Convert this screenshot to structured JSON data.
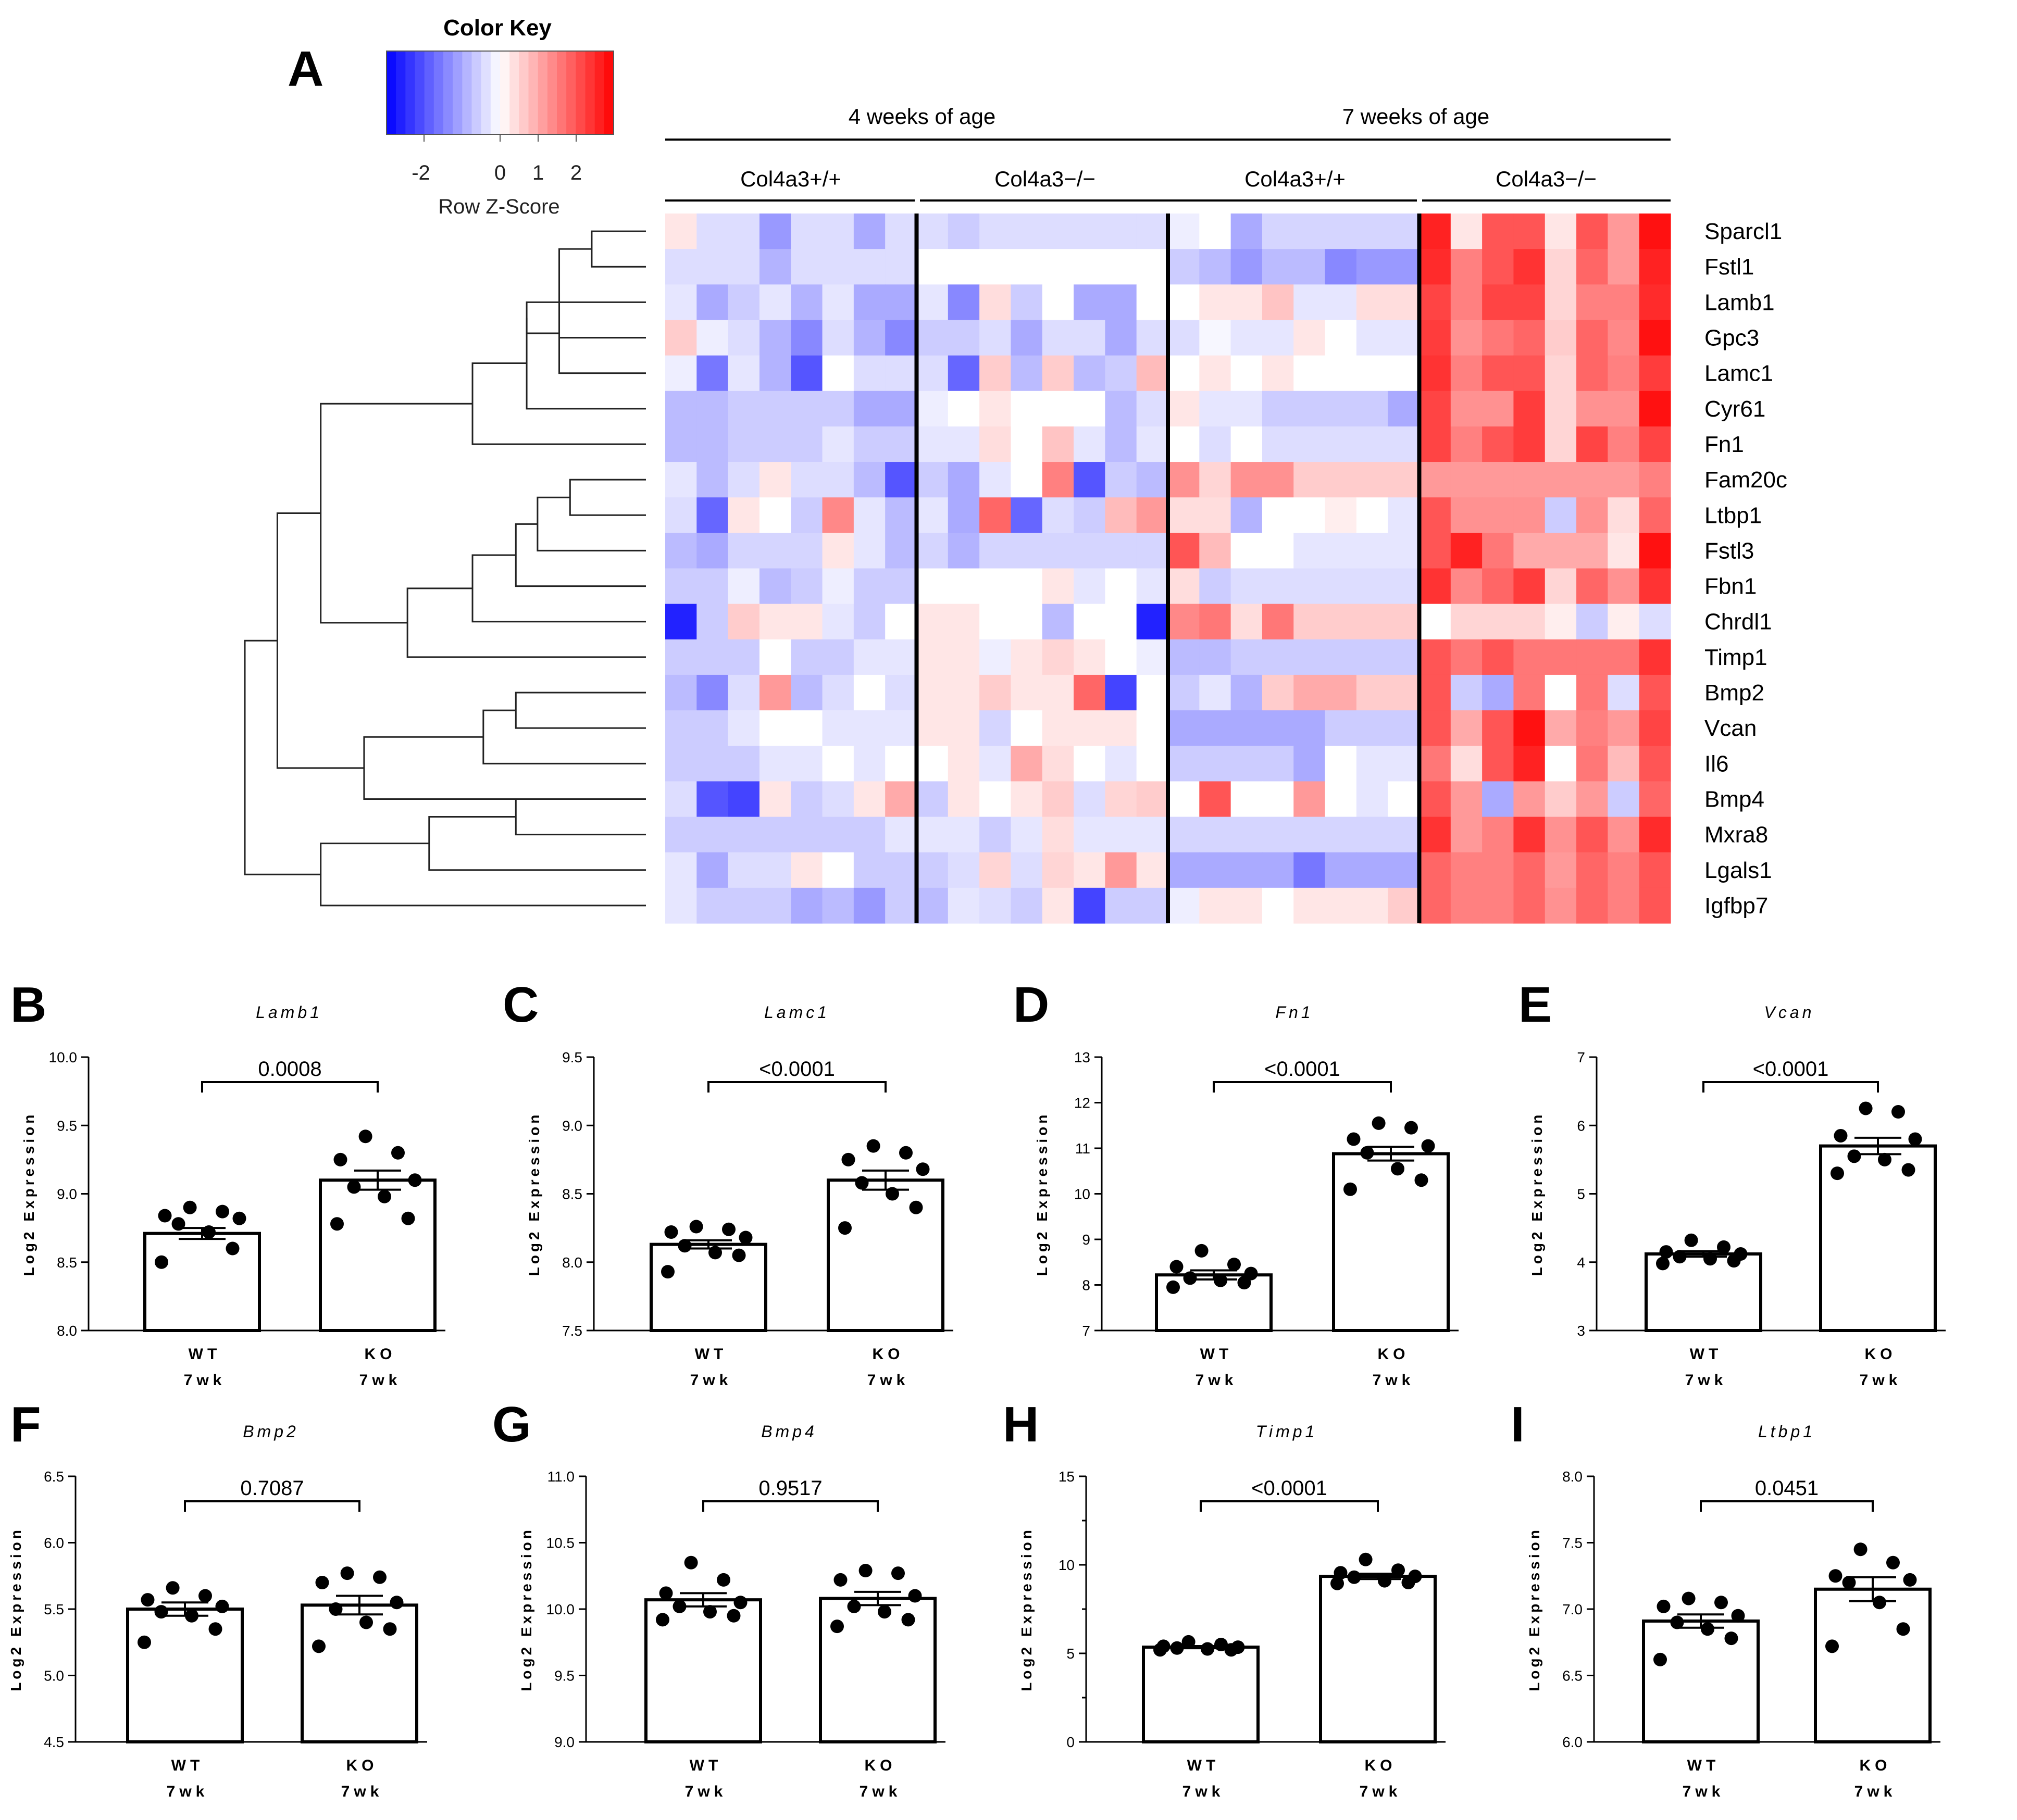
{
  "panel_a": {
    "letter": "A",
    "color_key": {
      "title": "Color Key",
      "ticks": [
        "-2",
        "0",
        "1",
        "2"
      ],
      "label": "Row Z-Score",
      "colors": [
        "#0000ff",
        "#ffffff",
        "#ff0000"
      ]
    },
    "age_groups": [
      "4 weeks of age",
      "7 weeks of age"
    ],
    "genotypes": [
      "Col4a3+/+",
      "Col4a3−/−",
      "Col4a3+/+",
      "Col4a3−/−"
    ]
  },
  "chart_data": [
    {
      "type": "heatmap",
      "title": "",
      "rows": [
        "Sparcl1",
        "Fstl1",
        "Lamb1",
        "Gpc3",
        "Lamc1",
        "Cyr61",
        "Fn1",
        "Fam20c",
        "Ltbp1",
        "Fstl3",
        "Fbn1",
        "Chrdl1",
        "Timp1",
        "Bmp2",
        "Vcan",
        "Il6",
        "Bmp4",
        "Mxra8",
        "Lgals1",
        "Igfbp7"
      ],
      "columns_per_group": 8,
      "groups": [
        "4 wk Col4a3+/+",
        "4 wk Col4a3−/−",
        "7 wk Col4a3+/+",
        "7 wk Col4a3−/−"
      ],
      "color_scale": {
        "min": -3,
        "max": 3,
        "low": "#0000ff",
        "mid": "#ffffff",
        "high": "#ff0000"
      },
      "values": [
        [
          0.3,
          -0.4,
          -0.4,
          -1.2,
          -0.4,
          -0.4,
          -1.0,
          -0.4,
          -0.4,
          -0.6,
          -0.4,
          -0.4,
          -0.4,
          -0.4,
          -0.4,
          -0.4,
          -0.2,
          0.0,
          -1.0,
          -0.5,
          -0.5,
          -0.5,
          -0.5,
          -0.5,
          2.6,
          0.3,
          2.0,
          2.0,
          0.3,
          2.0,
          1.2,
          2.8
        ],
        [
          -0.4,
          -0.4,
          -0.4,
          -0.9,
          -0.4,
          -0.4,
          -0.4,
          -0.4,
          0.0,
          0.0,
          0.0,
          0.0,
          0.0,
          0.0,
          0.0,
          0.0,
          -0.6,
          -0.8,
          -1.2,
          -0.8,
          -0.8,
          -1.4,
          -1.2,
          -1.2,
          2.5,
          1.5,
          2.0,
          2.4,
          0.5,
          1.8,
          1.2,
          2.6
        ],
        [
          -0.3,
          -1.0,
          -0.6,
          -0.3,
          -0.9,
          -0.3,
          -1.0,
          -1.0,
          -0.3,
          -1.4,
          0.4,
          -0.6,
          0.0,
          -1.0,
          -1.0,
          0.0,
          0.0,
          0.3,
          0.3,
          0.7,
          -0.3,
          -0.3,
          0.4,
          0.4,
          2.2,
          1.5,
          2.2,
          2.2,
          0.5,
          1.5,
          1.5,
          2.5
        ],
        [
          0.6,
          -0.2,
          -0.4,
          -0.9,
          -1.4,
          -0.4,
          -0.9,
          -1.4,
          -0.6,
          -0.6,
          -0.4,
          -1.0,
          -0.4,
          -0.4,
          -1.0,
          -0.4,
          -0.4,
          -0.1,
          -0.3,
          -0.3,
          0.3,
          0.0,
          -0.3,
          -0.3,
          2.3,
          1.3,
          1.6,
          1.8,
          0.6,
          1.8,
          1.4,
          2.8
        ],
        [
          -0.2,
          -1.6,
          -0.3,
          -0.9,
          -2.0,
          0.0,
          -0.4,
          -0.4,
          -0.4,
          -1.8,
          0.6,
          -0.8,
          0.6,
          -0.8,
          -0.6,
          0.8,
          0.0,
          0.3,
          0.0,
          0.3,
          0.0,
          0.0,
          0.0,
          0.0,
          2.4,
          1.5,
          2.0,
          2.0,
          0.5,
          1.8,
          1.5,
          2.3
        ],
        [
          -0.8,
          -0.8,
          -0.6,
          -0.6,
          -0.6,
          -0.6,
          -1.0,
          -1.0,
          -0.2,
          0.0,
          0.3,
          0.0,
          0.0,
          0.0,
          -0.8,
          -0.4,
          0.3,
          -0.3,
          -0.3,
          -0.6,
          -0.6,
          -0.6,
          -0.6,
          -1.0,
          2.2,
          1.3,
          1.3,
          2.3,
          0.5,
          1.3,
          1.3,
          2.8
        ],
        [
          -0.8,
          -0.8,
          -0.6,
          -0.6,
          -0.6,
          -0.3,
          -0.6,
          -0.6,
          -0.3,
          -0.3,
          0.4,
          0.0,
          0.7,
          -0.3,
          -0.8,
          -0.3,
          0.0,
          -0.4,
          0.0,
          -0.4,
          -0.4,
          -0.4,
          -0.4,
          -0.4,
          2.2,
          1.5,
          2.0,
          2.3,
          0.5,
          2.2,
          1.5,
          2.2
        ],
        [
          -0.3,
          -0.8,
          -0.4,
          0.3,
          -0.4,
          -0.4,
          -0.8,
          -2.0,
          -0.6,
          -1.0,
          -0.3,
          0.0,
          1.5,
          -2.0,
          -0.6,
          -0.8,
          1.3,
          0.5,
          1.3,
          1.3,
          0.6,
          0.6,
          0.6,
          0.6,
          1.2,
          1.2,
          1.2,
          1.2,
          1.2,
          1.2,
          1.2,
          1.5
        ],
        [
          -0.4,
          -1.8,
          0.3,
          0.0,
          -0.6,
          1.4,
          -0.3,
          -0.8,
          -0.3,
          -1.0,
          1.8,
          -1.8,
          -0.4,
          -0.6,
          0.8,
          1.2,
          0.4,
          0.4,
          -0.9,
          0.0,
          0.0,
          0.2,
          0.0,
          -0.3,
          2.0,
          1.3,
          1.3,
          1.3,
          -0.6,
          1.3,
          0.4,
          1.8
        ],
        [
          -0.8,
          -1.0,
          -0.5,
          -0.5,
          -0.5,
          0.3,
          -0.3,
          -0.8,
          -0.5,
          -0.9,
          -0.5,
          -0.5,
          -0.5,
          -0.5,
          -0.5,
          -0.5,
          2.0,
          0.8,
          0.0,
          0.0,
          -0.3,
          -0.3,
          -0.3,
          -0.3,
          2.0,
          2.6,
          1.6,
          1.0,
          1.0,
          1.0,
          0.3,
          2.8
        ],
        [
          -0.6,
          -0.6,
          -0.2,
          -0.8,
          -0.6,
          -0.2,
          -0.6,
          -0.6,
          0.0,
          0.0,
          0.0,
          0.0,
          0.3,
          -0.3,
          0.0,
          -0.3,
          0.4,
          -0.6,
          -0.4,
          -0.4,
          -0.4,
          -0.4,
          -0.4,
          -0.4,
          2.4,
          1.4,
          1.8,
          2.3,
          0.5,
          1.8,
          1.3,
          2.4
        ],
        [
          -2.6,
          -0.6,
          0.6,
          0.3,
          0.3,
          -0.3,
          -0.6,
          0.0,
          0.3,
          0.3,
          0.0,
          0.0,
          -0.8,
          0.0,
          0.0,
          -2.6,
          1.4,
          1.6,
          0.4,
          1.6,
          0.6,
          0.6,
          0.6,
          0.6,
          0.0,
          0.5,
          0.5,
          0.5,
          0.2,
          -0.6,
          0.2,
          -0.4
        ],
        [
          -0.6,
          -0.6,
          -0.6,
          0.0,
          -0.6,
          -0.6,
          -0.3,
          -0.3,
          0.3,
          0.3,
          -0.2,
          0.3,
          0.5,
          0.3,
          0.0,
          -0.2,
          -0.8,
          -0.8,
          -0.6,
          -0.6,
          -0.6,
          -0.6,
          -0.6,
          -0.6,
          2.0,
          1.6,
          2.0,
          1.6,
          1.6,
          1.6,
          1.6,
          2.4
        ],
        [
          -0.8,
          -1.4,
          -0.4,
          1.2,
          -0.8,
          -0.4,
          0.0,
          -0.4,
          0.3,
          0.3,
          0.6,
          0.3,
          0.3,
          1.8,
          -2.2,
          0.0,
          -0.6,
          -0.3,
          -0.9,
          0.6,
          1.0,
          1.0,
          0.6,
          0.6,
          2.0,
          -0.6,
          -1.0,
          1.6,
          0.0,
          1.6,
          -0.4,
          2.0
        ],
        [
          -0.6,
          -0.6,
          -0.3,
          0.0,
          0.0,
          -0.3,
          -0.3,
          -0.3,
          0.3,
          0.3,
          -0.5,
          0.0,
          0.3,
          0.3,
          0.3,
          0.0,
          -1.0,
          -1.0,
          -1.0,
          -1.0,
          -1.0,
          -0.6,
          -0.6,
          -0.6,
          2.0,
          1.0,
          2.0,
          2.8,
          1.0,
          1.5,
          1.2,
          2.2
        ],
        [
          -0.6,
          -0.6,
          -0.6,
          -0.3,
          -0.3,
          0.0,
          -0.3,
          0.0,
          0.0,
          0.3,
          -0.3,
          1.0,
          0.4,
          0.0,
          -0.3,
          0.0,
          -0.6,
          -0.6,
          -0.6,
          -0.6,
          -1.0,
          0.0,
          -0.3,
          -0.3,
          1.6,
          0.4,
          2.0,
          2.6,
          0.0,
          1.6,
          0.8,
          2.0
        ],
        [
          -0.4,
          -2.0,
          -2.2,
          0.3,
          -0.6,
          -0.4,
          0.3,
          1.0,
          -0.6,
          0.3,
          0.0,
          0.3,
          0.6,
          -0.4,
          0.5,
          0.6,
          0.0,
          2.0,
          0.0,
          0.0,
          1.2,
          0.0,
          -0.3,
          0.0,
          2.0,
          1.2,
          -1.0,
          1.2,
          0.6,
          1.2,
          -0.6,
          1.8
        ],
        [
          -0.6,
          -0.6,
          -0.6,
          -0.6,
          -0.6,
          -0.6,
          -0.6,
          -0.3,
          -0.3,
          -0.3,
          -0.6,
          -0.3,
          0.4,
          -0.3,
          -0.3,
          -0.3,
          -0.5,
          -0.5,
          -0.5,
          -0.5,
          -0.5,
          -0.5,
          -0.5,
          -0.5,
          2.4,
          1.2,
          1.5,
          2.4,
          1.3,
          2.0,
          1.3,
          2.5
        ],
        [
          -0.3,
          -1.0,
          -0.4,
          -0.4,
          0.3,
          0.0,
          -0.6,
          -0.6,
          -0.6,
          -0.4,
          0.5,
          -0.4,
          0.5,
          0.3,
          1.2,
          0.3,
          -1.0,
          -1.0,
          -1.0,
          -1.0,
          -1.6,
          -1.0,
          -1.0,
          -1.0,
          1.8,
          1.5,
          1.5,
          1.8,
          1.2,
          1.8,
          1.5,
          2.0
        ],
        [
          -0.3,
          -0.6,
          -0.6,
          -0.6,
          -1.0,
          -0.8,
          -1.2,
          -0.6,
          -0.8,
          -0.3,
          -0.4,
          -0.6,
          0.3,
          -2.2,
          -0.6,
          -0.6,
          -0.2,
          0.3,
          0.3,
          0.0,
          0.3,
          0.3,
          0.3,
          0.6,
          1.8,
          1.5,
          1.5,
          1.8,
          1.3,
          1.8,
          1.5,
          2.0
        ]
      ],
      "dendrogram_merges": [
        [
          0,
          1,
          0.5
        ],
        [
          20,
          3,
          0.8
        ],
        [
          21,
          4,
          0.8
        ],
        [
          22,
          2,
          1.1
        ],
        [
          23,
          5,
          1.1
        ],
        [
          24,
          6,
          1.6
        ],
        [
          7,
          8,
          0.7
        ],
        [
          26,
          9,
          1.0
        ],
        [
          27,
          10,
          1.2
        ],
        [
          28,
          11,
          1.6
        ],
        [
          29,
          12,
          2.2
        ],
        [
          25,
          30,
          3.0
        ],
        [
          13,
          14,
          1.2
        ],
        [
          32,
          15,
          1.5
        ],
        [
          33,
          16,
          2.6
        ],
        [
          16,
          17,
          1.2
        ],
        [
          35,
          18,
          2.0
        ],
        [
          36,
          19,
          3.0
        ],
        [
          31,
          34,
          3.4
        ],
        [
          38,
          37,
          3.7
        ]
      ]
    },
    {
      "type": "bar",
      "panel": "B",
      "title": "Lamb1",
      "categories": [
        "WT",
        "KO"
      ],
      "sublabels": [
        "7wk",
        "7wk"
      ],
      "values": [
        8.71,
        9.1
      ],
      "sem": [
        0.04,
        0.07
      ],
      "points": [
        [
          8.9,
          8.87,
          8.84,
          8.82,
          8.78,
          8.72,
          8.6,
          8.5
        ],
        [
          9.42,
          9.3,
          9.25,
          9.1,
          9.05,
          8.98,
          8.82,
          8.78
        ]
      ],
      "ylabel": "Log2 Expression",
      "ylim": [
        8.0,
        10.0
      ],
      "yticks": [
        "8.0",
        "8.5",
        "9.0",
        "9.5",
        "10.0"
      ],
      "pvalue": "0.0008"
    },
    {
      "type": "bar",
      "panel": "C",
      "title": "Lamc1",
      "categories": [
        "WT",
        "KO"
      ],
      "sublabels": [
        "7wk",
        "7wk"
      ],
      "values": [
        8.13,
        8.6
      ],
      "sem": [
        0.03,
        0.07
      ],
      "points": [
        [
          8.26,
          8.24,
          8.22,
          8.18,
          8.12,
          8.07,
          8.05,
          7.93
        ],
        [
          8.85,
          8.8,
          8.75,
          8.68,
          8.58,
          8.5,
          8.4,
          8.25
        ]
      ],
      "ylabel": "Log2 Expression",
      "ylim": [
        7.5,
        9.5
      ],
      "yticks": [
        "7.5",
        "8.0",
        "8.5",
        "9.0",
        "9.5"
      ],
      "pvalue": "<0.0001"
    },
    {
      "type": "bar",
      "panel": "D",
      "title": "Fn1",
      "categories": [
        "WT",
        "KO"
      ],
      "sublabels": [
        "7wk",
        "7wk"
      ],
      "values": [
        8.22,
        10.88
      ],
      "sem": [
        0.1,
        0.15
      ],
      "points": [
        [
          8.75,
          8.45,
          8.4,
          8.25,
          8.15,
          8.1,
          8.05,
          7.95
        ],
        [
          11.55,
          11.45,
          11.2,
          11.05,
          10.9,
          10.55,
          10.3,
          10.1
        ]
      ],
      "ylabel": "Log2 Expression",
      "ylim": [
        7,
        13
      ],
      "yticks": [
        "7",
        "8",
        "9",
        "10",
        "11",
        "12",
        "13"
      ],
      "pvalue": "<0.0001"
    },
    {
      "type": "bar",
      "panel": "E",
      "title": "Vcan",
      "categories": [
        "WT",
        "KO"
      ],
      "sublabels": [
        "7wk",
        "7wk"
      ],
      "values": [
        4.12,
        5.7
      ],
      "sem": [
        0.04,
        0.12
      ],
      "points": [
        [
          4.32,
          4.22,
          4.15,
          4.12,
          4.08,
          4.05,
          4.02,
          3.98
        ],
        [
          6.25,
          6.2,
          5.85,
          5.8,
          5.55,
          5.5,
          5.35,
          5.3
        ]
      ],
      "ylabel": "Log2 Expression",
      "ylim": [
        3,
        7
      ],
      "yticks": [
        "3",
        "4",
        "5",
        "6",
        "7"
      ],
      "pvalue": "<0.0001"
    },
    {
      "type": "bar",
      "panel": "F",
      "title": "Bmp2",
      "categories": [
        "WT",
        "KO"
      ],
      "sublabels": [
        "7wk",
        "7wk"
      ],
      "values": [
        5.5,
        5.53
      ],
      "sem": [
        0.05,
        0.07
      ],
      "points": [
        [
          5.66,
          5.6,
          5.57,
          5.52,
          5.48,
          5.45,
          5.35,
          5.25
        ],
        [
          5.77,
          5.74,
          5.7,
          5.55,
          5.5,
          5.4,
          5.35,
          5.22
        ]
      ],
      "ylabel": "Log2 Expression",
      "ylim": [
        4.5,
        6.5
      ],
      "yticks": [
        "4.5",
        "5.0",
        "5.5",
        "6.0",
        "6.5"
      ],
      "pvalue": "0.7087"
    },
    {
      "type": "bar",
      "panel": "G",
      "title": "Bmp4",
      "categories": [
        "WT",
        "KO"
      ],
      "sublabels": [
        "7wk",
        "7wk"
      ],
      "values": [
        10.07,
        10.08
      ],
      "sem": [
        0.05,
        0.05
      ],
      "points": [
        [
          10.35,
          10.22,
          10.12,
          10.05,
          10.02,
          9.98,
          9.95,
          9.92
        ],
        [
          10.29,
          10.27,
          10.22,
          10.1,
          10.02,
          9.98,
          9.92,
          9.87
        ]
      ],
      "ylabel": "Log2 Expression",
      "ylim": [
        9.0,
        11.0
      ],
      "yticks": [
        "9.0",
        "9.5",
        "10.0",
        "10.5",
        "11.0"
      ],
      "pvalue": "0.9517"
    },
    {
      "type": "bar",
      "panel": "H",
      "title": "Timp1",
      "categories": [
        "WT",
        "KO"
      ],
      "sublabels": [
        "7wk",
        "7wk"
      ],
      "values": [
        5.35,
        9.35
      ],
      "sem": [
        0.06,
        0.15
      ],
      "points": [
        [
          5.65,
          5.5,
          5.4,
          5.35,
          5.3,
          5.25,
          5.2,
          5.2
        ],
        [
          10.3,
          9.7,
          9.55,
          9.35,
          9.3,
          9.1,
          9.0,
          8.95
        ]
      ],
      "ylabel": "Log2 Expression",
      "ylim": [
        0,
        15
      ],
      "yticks": [
        "0",
        "5",
        "10",
        "15"
      ],
      "pvalue": "<0.0001"
    },
    {
      "type": "bar",
      "panel": "I",
      "title": "Ltbp1",
      "categories": [
        "WT",
        "KO"
      ],
      "sublabels": [
        "7wk",
        "7wk"
      ],
      "values": [
        6.91,
        7.15
      ],
      "sem": [
        0.05,
        0.09
      ],
      "points": [
        [
          7.08,
          7.05,
          7.02,
          6.95,
          6.9,
          6.85,
          6.78,
          6.62
        ],
        [
          7.45,
          7.35,
          7.25,
          7.22,
          7.2,
          7.05,
          6.85,
          6.72
        ]
      ],
      "ylabel": "Log2 Expression",
      "ylim": [
        6.0,
        8.0
      ],
      "yticks": [
        "6.0",
        "6.5",
        "7.0",
        "7.5",
        "8.0"
      ],
      "pvalue": "0.0451"
    }
  ]
}
